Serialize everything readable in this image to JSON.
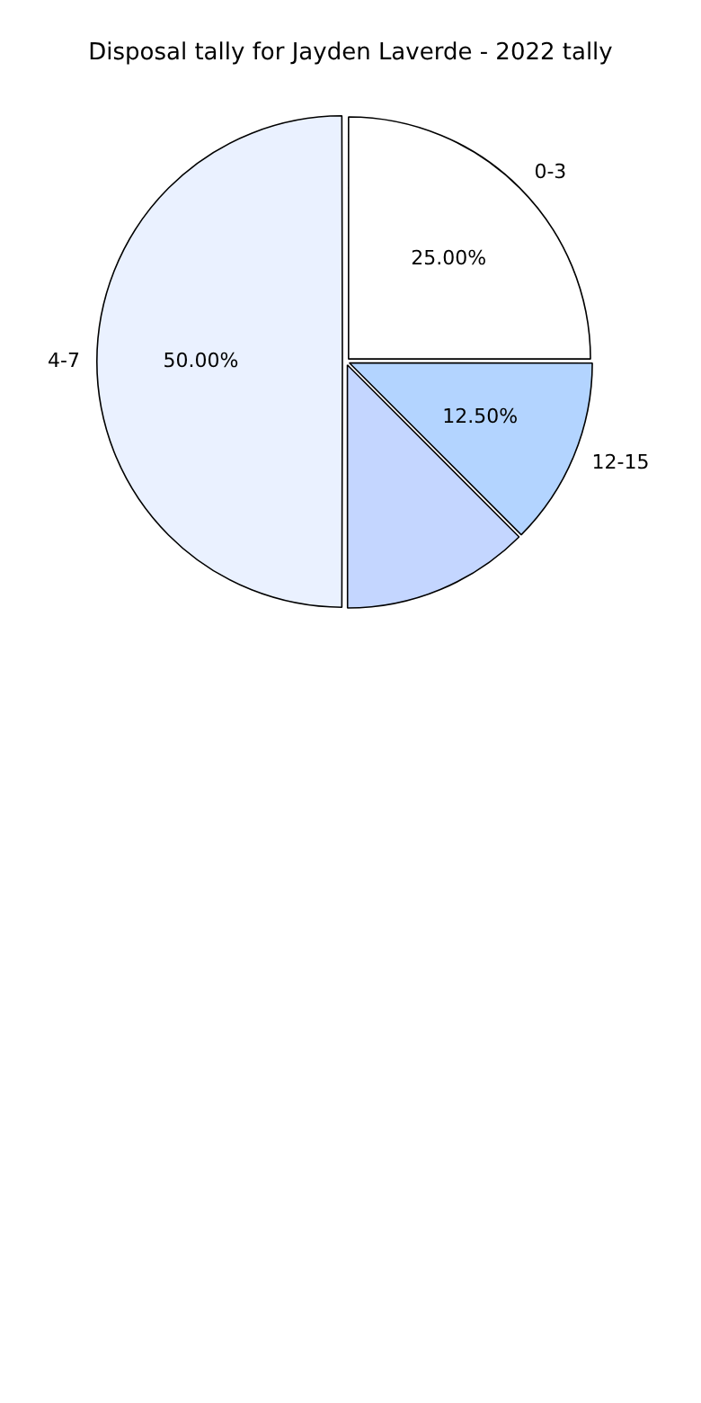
{
  "chart_data": {
    "type": "pie",
    "title": "Disposal tally for Jayden Laverde - 2022 tally",
    "categories": [
      "0-3",
      "12-15",
      null,
      "4-7"
    ],
    "values": [
      25,
      12.5,
      12.5,
      50
    ],
    "colors": [
      "#ffffff",
      "#b3d4ff",
      "#c4d6ff",
      "#eaf1ff"
    ],
    "value_labels": [
      "25.00%",
      "12.50%",
      null,
      "50.00%"
    ],
    "legend": false
  }
}
